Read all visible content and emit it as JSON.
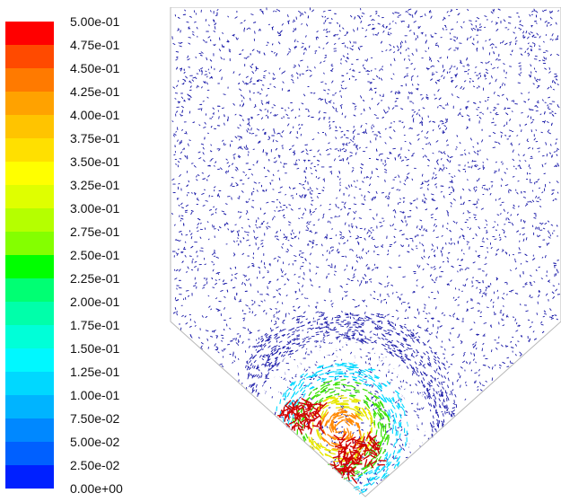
{
  "legend": {
    "labels": [
      "5.00e-01",
      "4.75e-01",
      "4.50e-01",
      "4.25e-01",
      "4.00e-01",
      "3.75e-01",
      "3.50e-01",
      "3.25e-01",
      "3.00e-01",
      "2.75e-01",
      "2.50e-01",
      "2.25e-01",
      "2.00e-01",
      "1.75e-01",
      "1.50e-01",
      "1.25e-01",
      "1.00e-01",
      "7.50e-02",
      "5.00e-02",
      "2.50e-02",
      "0.00e+00"
    ],
    "colors": [
      "#ff0000",
      "#ff4a00",
      "#ff7a00",
      "#ffa200",
      "#ffc400",
      "#ffe000",
      "#ffff00",
      "#dfff00",
      "#b5ff00",
      "#84ff00",
      "#00ff00",
      "#00ff73",
      "#00ffaa",
      "#00ffd8",
      "#00f8ff",
      "#00d8ff",
      "#00b4ff",
      "#0088ff",
      "#0060ff",
      "#0020ff"
    ]
  },
  "plot": {
    "vector_colors": {
      "low": "#1a1aa8",
      "mid_low": "#2a6cff",
      "cyan": "#00d8ff",
      "green": "#38e000",
      "yellow": "#e8e800",
      "orange": "#ff8800",
      "red": "#d00000"
    }
  }
}
